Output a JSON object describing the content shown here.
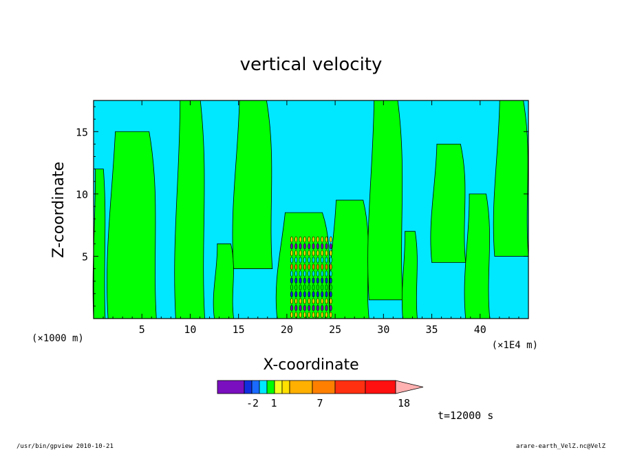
{
  "chart_data": {
    "type": "heatmap",
    "title": "vertical velocity",
    "xlabel": "X-coordinate",
    "ylabel": "Z-coordinate",
    "x_unit_note": "(×1E4 m)",
    "y_unit_note": "(×1000 m)",
    "xlim": [
      0,
      45
    ],
    "ylim": [
      0,
      17.5
    ],
    "x_ticks": [
      5,
      10,
      15,
      20,
      25,
      30,
      35,
      40
    ],
    "y_ticks": [
      5,
      10,
      15
    ],
    "grid": false,
    "colors": {
      "positive_weak": "#00ff00",
      "negative_weak": "#00e8ff",
      "contour_line": "#000000"
    },
    "green_bands": [
      {
        "x0": 0.0,
        "x1": 1.2,
        "z0": 0.0,
        "z1": 12.0
      },
      {
        "x0": 1.5,
        "x1": 6.5,
        "z0": 0.0,
        "z1": 15.0
      },
      {
        "x0": 8.5,
        "x1": 11.5,
        "z0": 0.0,
        "z1": 17.5
      },
      {
        "x0": 12.5,
        "x1": 14.5,
        "z0": 0.0,
        "z1": 6.0
      },
      {
        "x0": 14.5,
        "x1": 18.5,
        "z0": 4.0,
        "z1": 17.5
      },
      {
        "x0": 19.0,
        "x1": 24.5,
        "z0": 0.0,
        "z1": 8.5
      },
      {
        "x0": 24.5,
        "x1": 28.5,
        "z0": 0.0,
        "z1": 9.5
      },
      {
        "x0": 28.5,
        "x1": 32.0,
        "z0": 1.5,
        "z1": 17.5
      },
      {
        "x0": 32.0,
        "x1": 33.5,
        "z0": 0.0,
        "z1": 7.0
      },
      {
        "x0": 35.0,
        "x1": 38.5,
        "z0": 4.5,
        "z1": 14.0
      },
      {
        "x0": 38.5,
        "x1": 41.0,
        "z0": 0.0,
        "z1": 10.0
      },
      {
        "x0": 41.5,
        "x1": 45.0,
        "z0": 5.0,
        "z1": 17.5
      }
    ],
    "convective_core": {
      "x_range": [
        20.5,
        24.8
      ],
      "z_range": [
        0.0,
        6.5
      ]
    },
    "colorbar": {
      "tick_labels": [
        "-2",
        "1",
        "7",
        "18"
      ],
      "colors": [
        "#7a0fbf",
        "#1030e0",
        "#1a6aff",
        "#00e8ff",
        "#00ff00",
        "#f8ff20",
        "#ffe000",
        "#ffb000",
        "#ff8000",
        "#ff3010",
        "#ff1010",
        "#ff8080",
        "#ffb0b0"
      ],
      "extend": "max"
    },
    "time_label": "t=12000 s"
  },
  "footer": {
    "left": "/usr/bin/gpview 2010-10-21",
    "right": "arare-earth_VelZ.nc@VelZ"
  }
}
